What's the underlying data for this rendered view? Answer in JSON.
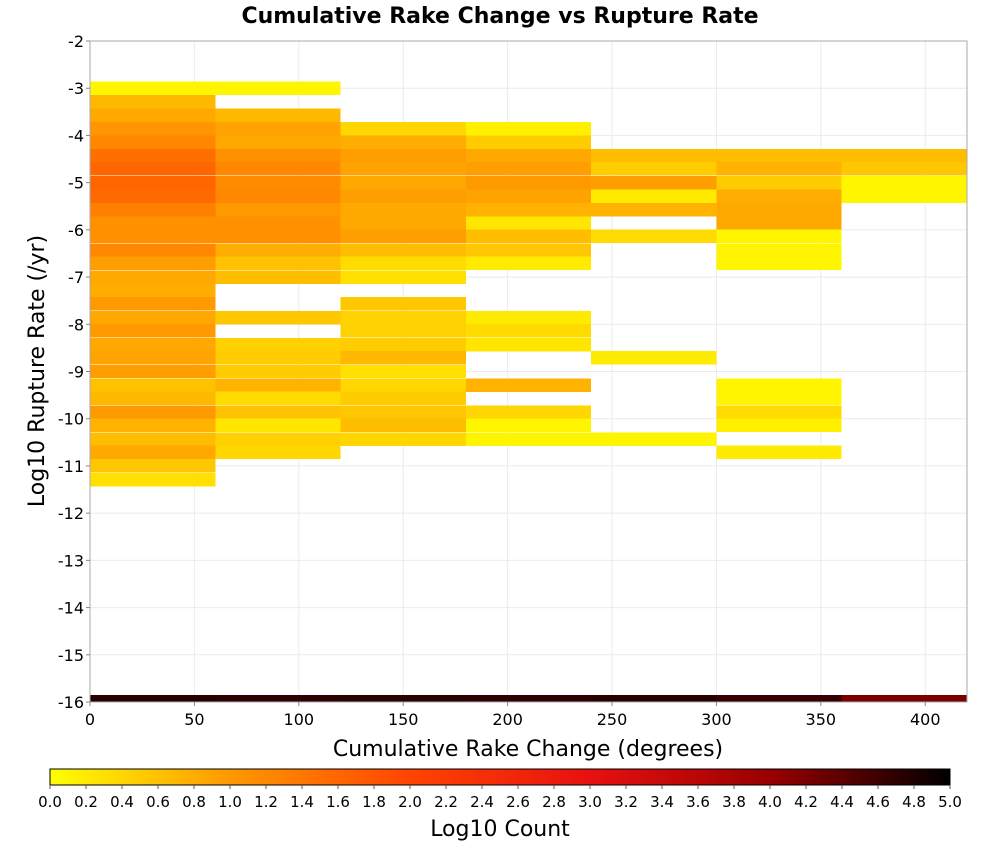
{
  "chart_data": {
    "type": "heatmap",
    "title": "Cumulative Rake Change vs Rupture Rate",
    "xlabel": "Cumulative Rake Change (degrees)",
    "ylabel": "Log10 Rupture Rate (/yr)",
    "xlim": [
      0,
      420
    ],
    "ylim": [
      -16,
      -2
    ],
    "x_ticks": [
      "0",
      "50",
      "100",
      "150",
      "200",
      "250",
      "300",
      "350",
      "400"
    ],
    "y_ticks": [
      "-2",
      "-3",
      "-4",
      "-5",
      "-6",
      "-7",
      "-8",
      "-9",
      "-10",
      "-11",
      "-12",
      "-13",
      "-14",
      "-15",
      "-16"
    ],
    "grid": true,
    "x_bin_width": 60,
    "y_bin_height": 0.2857,
    "colorbar": {
      "label": "Log10 Count",
      "range": [
        0,
        5
      ],
      "ticks": [
        "0.0",
        "0.2",
        "0.4",
        "0.6",
        "0.8",
        "1.0",
        "1.2",
        "1.4",
        "1.6",
        "1.8",
        "2.0",
        "2.2",
        "2.4",
        "2.6",
        "2.8",
        "3.0",
        "3.2",
        "3.4",
        "3.6",
        "3.8",
        "4.0",
        "4.2",
        "4.4",
        "4.6",
        "4.8",
        "5.0"
      ],
      "stops": [
        "#ffff00",
        "#ff9900",
        "#ff4400",
        "#e81010",
        "#990000",
        "#000000"
      ]
    },
    "columns": [
      {
        "x0": 0,
        "cells": [
          [
            -3.0,
            0.1
          ],
          [
            -3.29,
            0.7
          ],
          [
            -3.57,
            0.85
          ],
          [
            -3.86,
            1.05
          ],
          [
            -4.14,
            1.2
          ],
          [
            -4.43,
            1.5
          ],
          [
            -4.71,
            1.6
          ],
          [
            -5.0,
            1.6
          ],
          [
            -5.29,
            1.55
          ],
          [
            -5.57,
            1.3
          ],
          [
            -5.86,
            1.1
          ],
          [
            -6.14,
            1.1
          ],
          [
            -6.43,
            1.2
          ],
          [
            -6.71,
            0.95
          ],
          [
            -7.0,
            0.85
          ],
          [
            -7.29,
            0.8
          ],
          [
            -7.57,
            1.0
          ],
          [
            -7.86,
            0.85
          ],
          [
            -8.14,
            1.0
          ],
          [
            -8.43,
            0.85
          ],
          [
            -8.71,
            0.9
          ],
          [
            -9.0,
            0.95
          ],
          [
            -9.29,
            0.6
          ],
          [
            -9.57,
            0.7
          ],
          [
            -9.86,
            1.0
          ],
          [
            -10.14,
            0.75
          ],
          [
            -10.43,
            0.65
          ],
          [
            -10.71,
            0.85
          ],
          [
            -11.0,
            0.55
          ],
          [
            -11.29,
            0.3
          ]
        ]
      },
      {
        "x0": 60,
        "cells": [
          [
            -3.0,
            0.1
          ],
          [
            -3.57,
            0.7
          ],
          [
            -3.86,
            0.9
          ],
          [
            -4.14,
            0.85
          ],
          [
            -4.43,
            1.1
          ],
          [
            -4.71,
            1.2
          ],
          [
            -5.0,
            1.15
          ],
          [
            -5.29,
            1.2
          ],
          [
            -5.57,
            1.0
          ],
          [
            -5.86,
            1.1
          ],
          [
            -6.14,
            1.1
          ],
          [
            -6.43,
            0.8
          ],
          [
            -6.71,
            0.6
          ],
          [
            -7.0,
            0.65
          ],
          [
            -7.86,
            0.55
          ],
          [
            -8.43,
            0.45
          ],
          [
            -8.71,
            0.5
          ],
          [
            -9.0,
            0.5
          ],
          [
            -9.29,
            0.75
          ],
          [
            -9.57,
            0.35
          ],
          [
            -9.86,
            0.6
          ],
          [
            -10.14,
            0.25
          ],
          [
            -10.43,
            0.45
          ],
          [
            -10.71,
            0.4
          ]
        ]
      },
      {
        "x0": 120,
        "cells": [
          [
            -3.86,
            0.4
          ],
          [
            -4.14,
            0.8
          ],
          [
            -4.43,
            0.95
          ],
          [
            -4.71,
            0.9
          ],
          [
            -5.0,
            0.85
          ],
          [
            -5.29,
            0.95
          ],
          [
            -5.57,
            0.85
          ],
          [
            -5.86,
            0.85
          ],
          [
            -6.14,
            0.95
          ],
          [
            -6.43,
            0.65
          ],
          [
            -6.71,
            0.35
          ],
          [
            -7.0,
            0.3
          ],
          [
            -7.57,
            0.55
          ],
          [
            -7.86,
            0.45
          ],
          [
            -8.14,
            0.45
          ],
          [
            -8.43,
            0.5
          ],
          [
            -8.71,
            0.7
          ],
          [
            -9.0,
            0.3
          ],
          [
            -9.29,
            0.4
          ],
          [
            -9.57,
            0.5
          ],
          [
            -9.86,
            0.55
          ],
          [
            -10.14,
            0.65
          ],
          [
            -10.43,
            0.4
          ]
        ]
      },
      {
        "x0": 180,
        "cells": [
          [
            -3.86,
            0.15
          ],
          [
            -4.14,
            0.5
          ],
          [
            -4.43,
            0.85
          ],
          [
            -4.71,
            0.95
          ],
          [
            -5.0,
            1.0
          ],
          [
            -5.29,
            0.9
          ],
          [
            -5.57,
            0.75
          ],
          [
            -5.86,
            0.25
          ],
          [
            -6.14,
            0.65
          ],
          [
            -6.43,
            0.55
          ],
          [
            -6.71,
            0.2
          ],
          [
            -7.86,
            0.2
          ],
          [
            -8.14,
            0.35
          ],
          [
            -8.43,
            0.25
          ],
          [
            -9.29,
            0.75
          ],
          [
            -9.86,
            0.4
          ],
          [
            -10.14,
            0.1
          ],
          [
            -10.43,
            0.1
          ]
        ]
      },
      {
        "x0": 240,
        "cells": [
          [
            -4.43,
            0.65
          ],
          [
            -4.71,
            0.5
          ],
          [
            -5.0,
            0.95
          ],
          [
            -5.29,
            0.2
          ],
          [
            -5.57,
            0.75
          ],
          [
            -6.14,
            0.35
          ],
          [
            -8.71,
            0.2
          ],
          [
            -10.43,
            0.1
          ]
        ]
      },
      {
        "x0": 300,
        "cells": [
          [
            -4.43,
            0.65
          ],
          [
            -4.71,
            0.75
          ],
          [
            -5.0,
            0.5
          ],
          [
            -5.29,
            0.8
          ],
          [
            -5.57,
            0.85
          ],
          [
            -5.86,
            0.85
          ],
          [
            -6.14,
            0.1
          ],
          [
            -6.43,
            0.1
          ],
          [
            -6.71,
            0.1
          ],
          [
            -9.29,
            0.1
          ],
          [
            -9.57,
            0.1
          ],
          [
            -9.86,
            0.35
          ],
          [
            -10.14,
            0.15
          ],
          [
            -10.71,
            0.2
          ]
        ]
      },
      {
        "x0": 360,
        "cells": [
          [
            -4.43,
            0.65
          ],
          [
            -4.71,
            0.55
          ],
          [
            -5.0,
            0.1
          ],
          [
            -5.29,
            0.1
          ]
        ]
      }
    ],
    "bottom_row": {
      "y": -16,
      "height": 0.143,
      "values": [
        4.75,
        4.7,
        4.72,
        4.7,
        4.75,
        4.65,
        4.2
      ]
    }
  }
}
